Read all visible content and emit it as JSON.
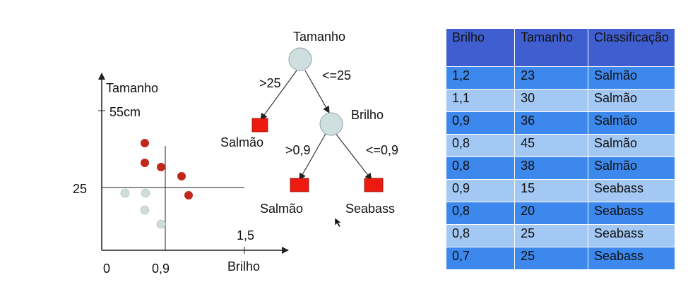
{
  "scatter": {
    "y_axis_label": "Tamanho",
    "y_tick_top": "55cm",
    "y_tick_mid": "25",
    "x_axis_label": "Brilho",
    "x_origin": "0",
    "x_tick_mid": "0,9",
    "x_tick_end": "1,5"
  },
  "tree": {
    "root_label": "Tamanho",
    "left_edge": ">25",
    "right_edge": "<=25",
    "leaf1_label": "Salmão",
    "node2_label": "Brilho",
    "left_edge2": ">0,9",
    "right_edge2": "<=0,9",
    "leaf2_label": "Salmão",
    "leaf3_label": "Seabass"
  },
  "table": {
    "headers": [
      "Brilho",
      "Tamanho",
      "Classificação"
    ],
    "rows": [
      [
        "1,2",
        "23",
        "Salmão"
      ],
      [
        "1,1",
        "30",
        "Salmão"
      ],
      [
        "0,9",
        "36",
        "Salmão"
      ],
      [
        "0,8",
        "45",
        "Salmão"
      ],
      [
        "0,8",
        "38",
        "Salmão"
      ],
      [
        "0,9",
        "15",
        "Seabass"
      ],
      [
        "0,8",
        "20",
        "Seabass"
      ],
      [
        "0,8",
        "25",
        "Seabass"
      ],
      [
        "0,7",
        "25",
        "Seabass"
      ]
    ]
  },
  "colors": {
    "salmon_point": "#c0281c",
    "seabass_point": "#d0dcdc",
    "leaf_fill": "#ee1a10",
    "node_fill": "#cfdfe0",
    "header_bg": "#3f5fd0",
    "row_dark": "#3d88ec",
    "row_light": "#a3c8f4"
  }
}
